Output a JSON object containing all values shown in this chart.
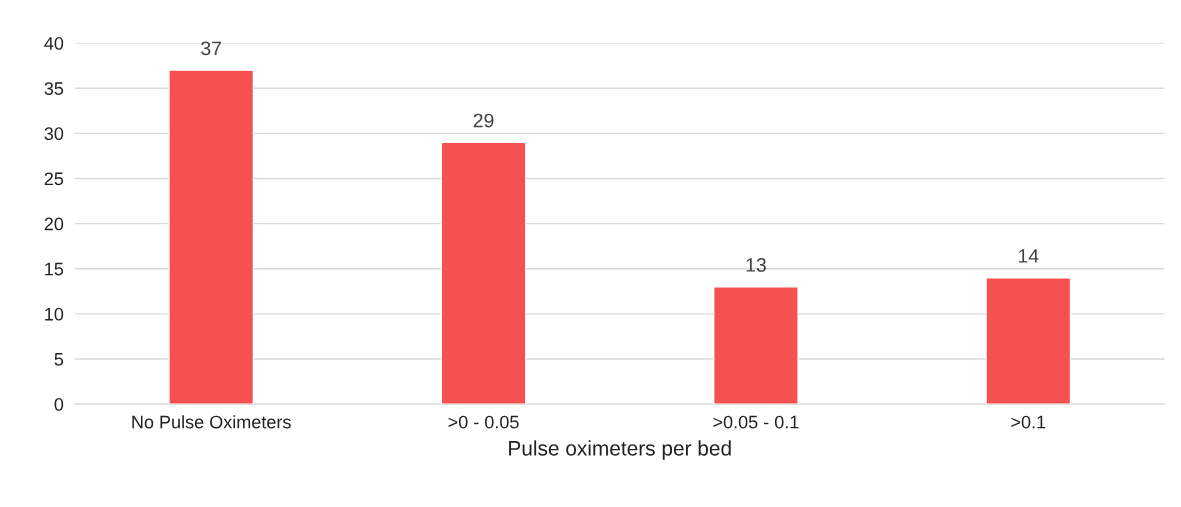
{
  "chart_data": {
    "type": "bar",
    "xlabel": "Pulse oximeters per bed",
    "categories": [
      "No Pulse Oximeters",
      ">0 - 0.05",
      ">0.05 - 0.1",
      ">0.1"
    ],
    "values": [
      37,
      29,
      13,
      14
    ],
    "color": "#f65051",
    "ylim": [
      0,
      40
    ],
    "yticks": [
      0,
      5,
      10,
      15,
      20,
      25,
      30,
      35,
      40
    ],
    "grid": "y",
    "data_labels": true
  }
}
